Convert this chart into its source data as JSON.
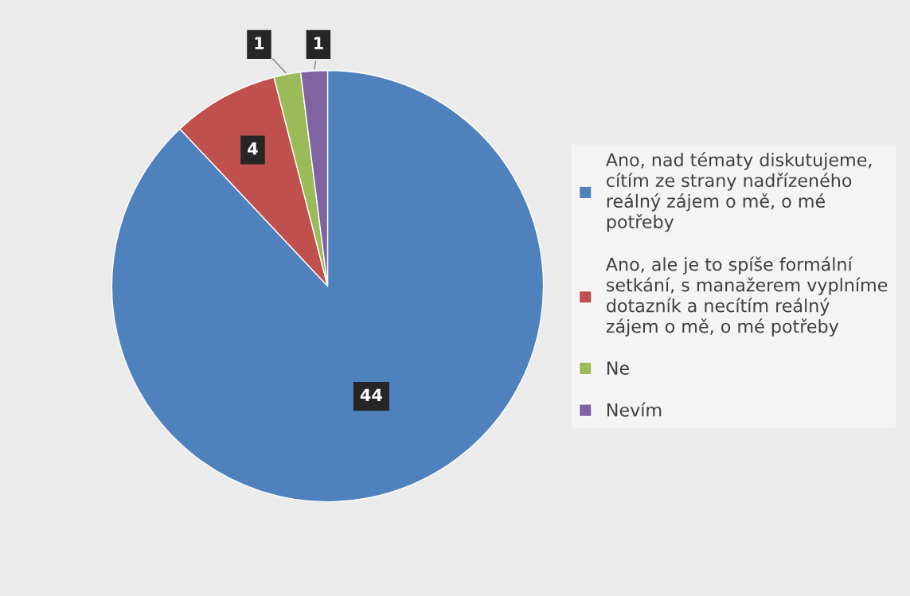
{
  "chart_data": {
    "type": "pie",
    "categories": [
      "Ano, nad tématy diskutujeme, cítím ze strany nadřízeného reálný zájem o mě, o mé potřeby",
      "Ano, ale je to spíše formální setkání, s manažerem vyplníme dotazník a necítím reálný zájem o mě, o mé potřeby",
      "Ne",
      "Nevím"
    ],
    "values": [
      44,
      4,
      1,
      1
    ],
    "colors": [
      "#4f81bd",
      "#c0504d",
      "#9bbb59",
      "#8064a2"
    ],
    "data_labels": true,
    "legend": "right"
  }
}
